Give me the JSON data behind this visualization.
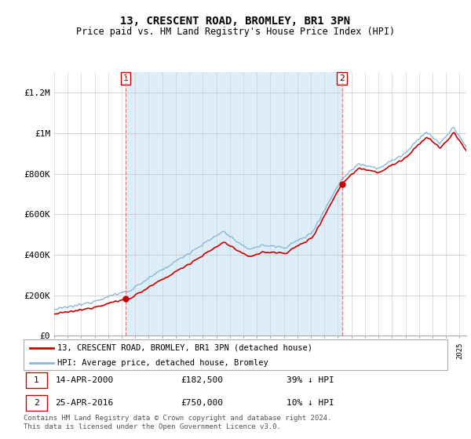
{
  "title": "13, CRESCENT ROAD, BROMLEY, BR1 3PN",
  "subtitle": "Price paid vs. HM Land Registry's House Price Index (HPI)",
  "legend_line1": "13, CRESCENT ROAD, BROMLEY, BR1 3PN (detached house)",
  "legend_line2": "HPI: Average price, detached house, Bromley",
  "annotation1_label": "1",
  "annotation1_date": "14-APR-2000",
  "annotation1_price": 182500,
  "annotation1_hpi": "39% ↓ HPI",
  "annotation2_label": "2",
  "annotation2_date": "25-APR-2016",
  "annotation2_price": 750000,
  "annotation2_hpi": "10% ↓ HPI",
  "footer": "Contains HM Land Registry data © Crown copyright and database right 2024.\nThis data is licensed under the Open Government Licence v3.0.",
  "hpi_color": "#89b8d8",
  "hpi_fill_color": "#ddeef8",
  "price_color": "#cc0000",
  "dashed_color": "#e08080",
  "ylim": [
    0,
    1300000
  ],
  "yticks": [
    0,
    200000,
    400000,
    600000,
    800000,
    1000000,
    1200000
  ],
  "ytick_labels": [
    "£0",
    "£200K",
    "£400K",
    "£600K",
    "£800K",
    "£1M",
    "£1.2M"
  ],
  "sale1_year": 2000.28,
  "sale1_price": 182500,
  "sale2_year": 2016.3,
  "sale2_price": 750000,
  "bg_color": "#f0f4f8"
}
